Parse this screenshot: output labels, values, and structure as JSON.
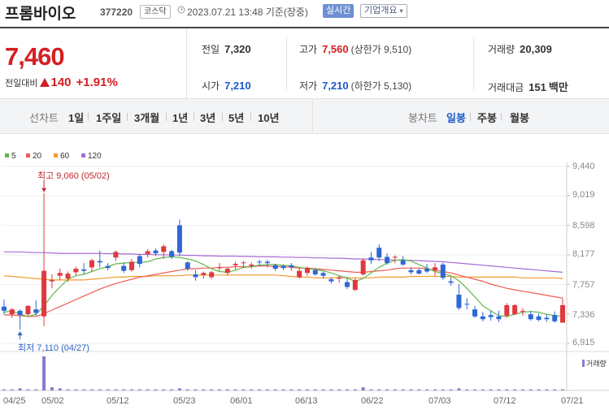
{
  "header": {
    "name": "프롬바이오",
    "code": "377220",
    "market": "코스닥",
    "asof": "2023.07.21 13:48 기준(장중)",
    "realtime": "실시간",
    "corp": "기업개요"
  },
  "price": {
    "current": "7,460",
    "change_label": "전일대비",
    "change": "140",
    "change_pct": "+1.91%"
  },
  "stats": {
    "prev_label": "전일",
    "prev": "7,320",
    "high_label": "고가",
    "high": "7,560",
    "high_limit": "(상한가 9,510)",
    "volume_label": "거래량",
    "volume": "20,309",
    "open_label": "시가",
    "open": "7,210",
    "low_label": "저가",
    "low": "7,210",
    "low_limit": "(하한가 5,130)",
    "amount_label": "거래대금",
    "amount": "151",
    "amount_unit": "백만"
  },
  "tabs": {
    "line_label": "선차트",
    "periods": [
      "1일",
      "1주일",
      "3개월",
      "1년",
      "3년",
      "5년",
      "10년"
    ],
    "candle_label": "봉차트",
    "candle": [
      "일봉",
      "주봉",
      "월봉"
    ],
    "active_candle": "일봉"
  },
  "colors": {
    "up": "#e0383e",
    "down": "#2f67d6",
    "ma5": "#5fb94a",
    "ma20": "#f05a55",
    "ma60": "#f39a2c",
    "ma120": "#a86bd6"
  },
  "chart_data": {
    "type": "candlestick",
    "legend": [
      "5",
      "20",
      "60",
      "120"
    ],
    "y_ticks": [
      "9,440",
      "9,019",
      "8,598",
      "8,177",
      "7,757",
      "7,336",
      "6,915"
    ],
    "ylim": [
      6915,
      9440
    ],
    "x_ticks": [
      "04/25",
      "05/02",
      "05/12",
      "05/23",
      "06/01",
      "06/13",
      "06/22",
      "07/03",
      "07/12",
      "07/21"
    ],
    "max_label": "최고 9,060 (05/02)",
    "min_label": "최저 7,110 (04/27)",
    "volume_label": "거래량",
    "candles": [
      [
        7440,
        7540,
        7330,
        7380
      ],
      [
        7330,
        7420,
        7280,
        7400
      ],
      [
        7380,
        7400,
        7110,
        7320
      ],
      [
        7330,
        7460,
        7300,
        7450
      ],
      [
        7400,
        7530,
        7310,
        7350
      ],
      [
        7300,
        9060,
        7160,
        7950
      ],
      [
        7800,
        7900,
        7700,
        7820
      ],
      [
        7880,
        7980,
        7820,
        7920
      ],
      [
        7840,
        7940,
        7790,
        7910
      ],
      [
        7930,
        8010,
        7880,
        7980
      ],
      [
        7970,
        8060,
        7900,
        7950
      ],
      [
        8000,
        8120,
        7940,
        8100
      ],
      [
        8090,
        8240,
        8000,
        8070
      ],
      [
        8020,
        8060,
        7960,
        7990
      ],
      [
        8140,
        8240,
        8090,
        8220
      ],
      [
        8020,
        8070,
        7920,
        7950
      ],
      [
        7960,
        8120,
        7940,
        8080
      ],
      [
        8160,
        8190,
        8000,
        8050
      ],
      [
        8190,
        8260,
        8140,
        8230
      ],
      [
        8240,
        8270,
        8160,
        8200
      ],
      [
        8220,
        8330,
        8120,
        8300
      ],
      [
        8230,
        8250,
        8120,
        8150
      ],
      [
        8600,
        8680,
        8160,
        8210
      ],
      [
        8070,
        8090,
        7950,
        7980
      ],
      [
        7900,
        7960,
        7810,
        7860
      ],
      [
        7890,
        7940,
        7840,
        7920
      ],
      [
        7860,
        7950,
        7830,
        7930
      ],
      [
        8000,
        8060,
        7950,
        8000
      ],
      [
        7920,
        8000,
        7880,
        7980
      ],
      [
        8030,
        8080,
        7960,
        8050
      ],
      [
        8060,
        8090,
        7990,
        8070
      ],
      [
        8020,
        8070,
        7980,
        8040
      ],
      [
        8080,
        8110,
        8020,
        8070
      ],
      [
        8080,
        8110,
        8000,
        8060
      ],
      [
        8030,
        8050,
        7950,
        7980
      ],
      [
        8020,
        8040,
        7960,
        7990
      ],
      [
        8030,
        8060,
        7950,
        8000
      ],
      [
        7860,
        7990,
        7840,
        7950
      ],
      [
        7920,
        8010,
        7880,
        7990
      ],
      [
        7960,
        7990,
        7880,
        7900
      ],
      [
        7920,
        7940,
        7840,
        7880
      ],
      [
        7830,
        7860,
        7770,
        7800
      ],
      [
        7840,
        7880,
        7780,
        7860
      ],
      [
        7790,
        7860,
        7690,
        7720
      ],
      [
        7680,
        7850,
        7660,
        7820
      ],
      [
        7900,
        8130,
        7880,
        8100
      ],
      [
        8140,
        8220,
        8050,
        8100
      ],
      [
        8280,
        8330,
        8090,
        8140
      ],
      [
        8150,
        8200,
        8040,
        8060
      ],
      [
        8140,
        8170,
        8060,
        8150
      ],
      [
        8100,
        8160,
        8020,
        8040
      ],
      [
        7960,
        8000,
        7900,
        7930
      ],
      [
        7960,
        7990,
        7900,
        7910
      ],
      [
        7980,
        8050,
        7920,
        7940
      ],
      [
        7960,
        8060,
        7880,
        8000
      ],
      [
        8040,
        8070,
        7820,
        7850
      ],
      [
        7800,
        7860,
        7740,
        7780
      ],
      [
        7610,
        7760,
        7390,
        7420
      ],
      [
        7480,
        7560,
        7400,
        7470
      ],
      [
        7400,
        7450,
        7280,
        7300
      ],
      [
        7300,
        7360,
        7230,
        7260
      ],
      [
        7320,
        7380,
        7240,
        7290
      ],
      [
        7300,
        7380,
        7220,
        7260
      ],
      [
        7310,
        7490,
        7280,
        7460
      ],
      [
        7330,
        7480,
        7320,
        7460
      ],
      [
        7370,
        7420,
        7310,
        7380
      ],
      [
        7330,
        7380,
        7240,
        7260
      ],
      [
        7300,
        7340,
        7230,
        7250
      ],
      [
        7280,
        7330,
        7220,
        7260
      ],
      [
        7320,
        7370,
        7210,
        7230
      ],
      [
        7210,
        7560,
        7210,
        7460
      ]
    ],
    "ma5": [
      7360,
      7380,
      7330,
      7300,
      7330,
      7450,
      7600,
      7720,
      7830,
      7880,
      7900,
      7940,
      7980,
      8010,
      8050,
      8060,
      8070,
      8070,
      8080,
      8120,
      8140,
      8150,
      8140,
      8120,
      8090,
      8040,
      7980,
      7940,
      7930,
      7960,
      8000,
      8010,
      8030,
      8040,
      8040,
      8030,
      8020,
      8000,
      7980,
      7970,
      7950,
      7920,
      7880,
      7850,
      7800,
      7840,
      7920,
      8000,
      8060,
      8100,
      8110,
      8090,
      8040,
      7990,
      7940,
      7910,
      7880,
      7810,
      7700,
      7580,
      7450,
      7380,
      7310,
      7300,
      7330,
      7360,
      7370,
      7360,
      7330,
      7310,
      7300
    ],
    "ma20": [
      7320,
      7320,
      7310,
      7300,
      7300,
      7340,
      7390,
      7440,
      7490,
      7540,
      7590,
      7640,
      7690,
      7730,
      7770,
      7800,
      7830,
      7860,
      7880,
      7900,
      7920,
      7940,
      7960,
      7980,
      7980,
      7990,
      7990,
      8000,
      8000,
      8010,
      8010,
      8010,
      8020,
      8020,
      8010,
      8010,
      8000,
      7990,
      7990,
      7980,
      7970,
      7960,
      7950,
      7940,
      7930,
      7930,
      7940,
      7950,
      7960,
      7980,
      7990,
      7990,
      7990,
      7980,
      7960,
      7940,
      7920,
      7890,
      7860,
      7830,
      7800,
      7760,
      7730,
      7700,
      7680,
      7660,
      7640,
      7620,
      7600,
      7580,
      7560
    ],
    "ma60": [
      7880,
      7870,
      7860,
      7850,
      7840,
      7830,
      7820,
      7820,
      7820,
      7820,
      7820,
      7830,
      7840,
      7850,
      7860,
      7860,
      7870,
      7870,
      7870,
      7880,
      7880,
      7880,
      7880,
      7890,
      7890,
      7890,
      7890,
      7890,
      7890,
      7890,
      7890,
      7890,
      7890,
      7890,
      7890,
      7880,
      7870,
      7860,
      7860,
      7850,
      7850,
      7850,
      7850,
      7850,
      7850,
      7850,
      7850,
      7860,
      7860,
      7860,
      7860,
      7870,
      7870,
      7870,
      7870,
      7870,
      7870,
      7860,
      7860,
      7860,
      7860,
      7860,
      7860,
      7860,
      7860,
      7850,
      7850,
      7850,
      7850,
      7850,
      7840
    ],
    "ma120": [
      8220,
      8220,
      8220,
      8215,
      8210,
      8210,
      8205,
      8200,
      8200,
      8200,
      8200,
      8200,
      8200,
      8195,
      8195,
      8190,
      8190,
      8185,
      8185,
      8180,
      8180,
      8175,
      8175,
      8170,
      8170,
      8165,
      8165,
      8160,
      8160,
      8160,
      8155,
      8155,
      8150,
      8150,
      8150,
      8145,
      8145,
      8140,
      8140,
      8135,
      8135,
      8130,
      8130,
      8125,
      8120,
      8120,
      8115,
      8110,
      8110,
      8105,
      8100,
      8100,
      8095,
      8090,
      8085,
      8080,
      8070,
      8060,
      8050,
      8040,
      8030,
      8020,
      8010,
      8000,
      7990,
      7980,
      7970,
      7960,
      7950,
      7940,
      7930
    ],
    "volume": [
      1,
      1,
      2,
      1,
      1,
      32,
      3,
      2,
      1,
      1,
      1,
      1,
      1,
      1,
      1,
      1,
      1,
      1,
      1,
      1,
      1,
      1,
      2,
      1,
      1,
      1,
      1,
      1,
      1,
      1,
      1,
      1,
      1,
      1,
      1,
      1,
      1,
      1,
      1,
      1,
      1,
      1,
      1,
      1,
      1,
      3,
      1,
      1,
      1,
      1,
      1,
      1,
      1,
      1,
      1,
      1,
      1,
      2,
      1,
      1,
      1,
      1,
      1,
      1,
      1,
      1,
      1,
      1,
      1,
      1,
      1
    ],
    "grid": true
  }
}
